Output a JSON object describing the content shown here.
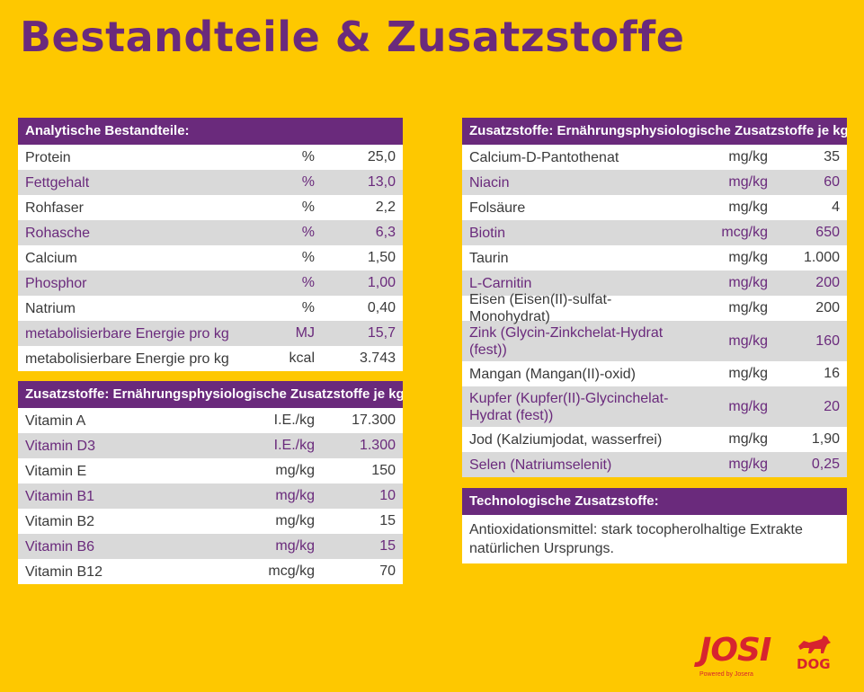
{
  "title": "Bestandteile & Zusatzstoffe",
  "analytic": {
    "header": "Analytische Bestandteile:",
    "rows": [
      {
        "name": "Protein",
        "unit": "%",
        "value": "25,0"
      },
      {
        "name": "Fettgehalt",
        "unit": "%",
        "value": "13,0"
      },
      {
        "name": "Rohfaser",
        "unit": "%",
        "value": "2,2"
      },
      {
        "name": "Rohasche",
        "unit": "%",
        "value": "6,3"
      },
      {
        "name": "Calcium",
        "unit": "%",
        "value": "1,50"
      },
      {
        "name": "Phosphor",
        "unit": "%",
        "value": "1,00"
      },
      {
        "name": "Natrium",
        "unit": "%",
        "value": "0,40"
      },
      {
        "name": "metabolisierbare Energie pro kg",
        "unit": "MJ",
        "value": "15,7"
      },
      {
        "name": "metabolisierbare Energie pro kg",
        "unit": "kcal",
        "value": "3.743"
      }
    ]
  },
  "vitamins": {
    "header": "Zusatzstoffe: Ernährungsphysiologische Zusatzstoffe je kg:",
    "rows": [
      {
        "name": "Vitamin A",
        "unit": "I.E./kg",
        "value": "17.300"
      },
      {
        "name": "Vitamin D3",
        "unit": "I.E./kg",
        "value": "1.300"
      },
      {
        "name": "Vitamin E",
        "unit": "mg/kg",
        "value": "150"
      },
      {
        "name": "Vitamin B1",
        "unit": "mg/kg",
        "value": "10"
      },
      {
        "name": "Vitamin B2",
        "unit": "mg/kg",
        "value": "15"
      },
      {
        "name": "Vitamin B6",
        "unit": "mg/kg",
        "value": "15"
      },
      {
        "name": "Vitamin B12",
        "unit": "mcg/kg",
        "value": "70"
      }
    ]
  },
  "additives": {
    "header": "Zusatzstoffe: Ernährungsphysiologische Zusatzstoffe je kg:",
    "rows": [
      {
        "name": "Calcium-D-Pantothenat",
        "unit": "mg/kg",
        "value": "35"
      },
      {
        "name": "Niacin",
        "unit": "mg/kg",
        "value": "60"
      },
      {
        "name": "Folsäure",
        "unit": "mg/kg",
        "value": "4"
      },
      {
        "name": "Biotin",
        "unit": "mcg/kg",
        "value": "650"
      },
      {
        "name": "Taurin",
        "unit": "mg/kg",
        "value": "1.000"
      },
      {
        "name": "L-Carnitin",
        "unit": "mg/kg",
        "value": "200"
      },
      {
        "name": "Eisen (Eisen(II)-sulfat-Monohydrat)",
        "unit": "mg/kg",
        "value": "200"
      },
      {
        "name": "Zink (Glycin-Zinkchelat-Hydrat (fest))",
        "unit": "mg/kg",
        "value": "160",
        "tall": true
      },
      {
        "name": "Mangan (Mangan(II)-oxid)",
        "unit": "mg/kg",
        "value": "16"
      },
      {
        "name": "Kupfer (Kupfer(II)-Glycinchelat-Hydrat (fest))",
        "unit": "mg/kg",
        "value": "20",
        "tall": true
      },
      {
        "name": "Jod (Kalziumjodat, wasserfrei)",
        "unit": "mg/kg",
        "value": "1,90"
      },
      {
        "name": "Selen (Natriumselenit)",
        "unit": "mg/kg",
        "value": "0,25"
      }
    ]
  },
  "tech": {
    "header": "Technologische Zusatzstoffe:",
    "text": "Antioxidationsmittel: stark tocopherolhaltige Extrakte natürlichen Ursprungs."
  },
  "logo": {
    "brand": "JOSI",
    "brand_suffix": "DOG",
    "tagline": "Powered by Josera"
  },
  "colors": {
    "background": "#fec800",
    "purple": "#6a2a7c",
    "row_alt": "#d9d9d9",
    "logo_red": "#d7242f"
  }
}
